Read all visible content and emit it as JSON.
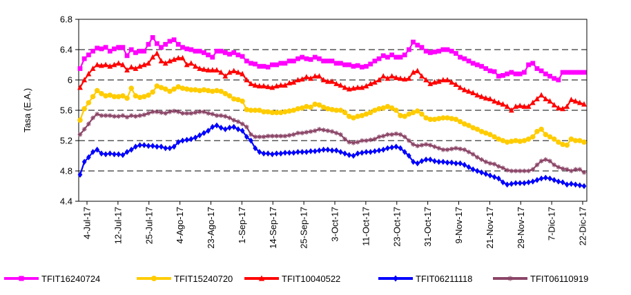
{
  "chart_data": {
    "type": "line",
    "title": "",
    "xlabel": "",
    "ylabel": "Tasa (E.A.)",
    "ylim": [
      4.4,
      6.8
    ],
    "yticks": [
      "4.4",
      "4.8",
      "5.2",
      "5.6",
      "6",
      "6.4",
      "6.8"
    ],
    "grid": "horizontal dashed",
    "legend_position": "bottom",
    "x_tick_labels": [
      "4-Jul-17",
      "12-Jul-17",
      "25-Jul-17",
      "4-Ago-17",
      "23-Ago-17",
      "1-Sep-17",
      "14-Sep-17",
      "25-Sep-17",
      "3-Oct-17",
      "11-Oct-17",
      "23-Oct-17",
      "31-Oct-17",
      "9-Nov-17",
      "21-Nov-17",
      "29-Nov-17",
      "7-Dic-17",
      "22-Dic-17"
    ],
    "n_points": 119,
    "series": [
      {
        "name": "TFIT16240724",
        "color": "#ff00ff",
        "marker": "square",
        "values": [
          6.15,
          6.28,
          6.33,
          6.38,
          6.42,
          6.41,
          6.43,
          6.38,
          6.41,
          6.43,
          6.43,
          6.32,
          6.4,
          6.36,
          6.38,
          6.38,
          6.47,
          6.56,
          6.48,
          6.43,
          6.47,
          6.51,
          6.53,
          6.47,
          6.43,
          6.41,
          6.4,
          6.38,
          6.38,
          6.36,
          6.33,
          6.3,
          6.38,
          6.38,
          6.36,
          6.34,
          6.36,
          6.33,
          6.31,
          6.25,
          6.22,
          6.21,
          6.18,
          6.18,
          6.17,
          6.2,
          6.2,
          6.22,
          6.22,
          6.25,
          6.25,
          6.28,
          6.3,
          6.28,
          6.27,
          6.3,
          6.28,
          6.25,
          6.25,
          6.25,
          6.22,
          6.22,
          6.2,
          6.2,
          6.18,
          6.19,
          6.17,
          6.18,
          6.21,
          6.25,
          6.28,
          6.32,
          6.3,
          6.33,
          6.3,
          6.3,
          6.33,
          6.4,
          6.5,
          6.46,
          6.43,
          6.38,
          6.36,
          6.37,
          6.38,
          6.4,
          6.4,
          6.38,
          6.35,
          6.3,
          6.28,
          6.25,
          6.22,
          6.2,
          6.18,
          6.15,
          6.12,
          6.11,
          6.05,
          6.06,
          6.08,
          6.1,
          6.08,
          6.08,
          6.1,
          6.2,
          6.22,
          6.15,
          6.12,
          6.08,
          6.05,
          6.02,
          6.0,
          6.1,
          6.1,
          6.1,
          6.1,
          6.1,
          6.1
        ]
      },
      {
        "name": "TFIT15240720",
        "color": "#ffcc00",
        "marker": "circle",
        "values": [
          5.47,
          5.62,
          5.7,
          5.78,
          5.86,
          5.82,
          5.79,
          5.8,
          5.78,
          5.78,
          5.79,
          5.76,
          5.89,
          5.79,
          5.77,
          5.78,
          5.8,
          5.84,
          5.92,
          5.9,
          5.88,
          5.85,
          5.88,
          5.91,
          5.89,
          5.88,
          5.87,
          5.87,
          5.86,
          5.87,
          5.86,
          5.85,
          5.86,
          5.85,
          5.82,
          5.79,
          5.75,
          5.74,
          5.72,
          5.61,
          5.6,
          5.6,
          5.6,
          5.58,
          5.58,
          5.57,
          5.57,
          5.57,
          5.58,
          5.59,
          5.6,
          5.62,
          5.63,
          5.65,
          5.64,
          5.68,
          5.67,
          5.64,
          5.62,
          5.61,
          5.6,
          5.6,
          5.57,
          5.52,
          5.5,
          5.52,
          5.53,
          5.55,
          5.57,
          5.6,
          5.62,
          5.63,
          5.65,
          5.63,
          5.6,
          5.53,
          5.52,
          5.55,
          5.57,
          5.59,
          5.55,
          5.5,
          5.48,
          5.48,
          5.49,
          5.5,
          5.5,
          5.49,
          5.48,
          5.45,
          5.42,
          5.4,
          5.37,
          5.35,
          5.32,
          5.3,
          5.28,
          5.25,
          5.22,
          5.2,
          5.18,
          5.19,
          5.2,
          5.19,
          5.2,
          5.22,
          5.25,
          5.32,
          5.35,
          5.28,
          5.25,
          5.22,
          5.18,
          5.15,
          5.14,
          5.22,
          5.2,
          5.2,
          5.18
        ]
      },
      {
        "name": "TFIT10040522",
        "color": "#ff0000",
        "marker": "triangle",
        "values": [
          5.9,
          6.0,
          6.08,
          6.15,
          6.2,
          6.19,
          6.2,
          6.18,
          6.2,
          6.22,
          6.2,
          6.13,
          6.17,
          6.15,
          6.18,
          6.2,
          6.22,
          6.3,
          6.35,
          6.25,
          6.22,
          6.25,
          6.27,
          6.29,
          6.29,
          6.2,
          6.22,
          6.18,
          6.15,
          6.14,
          6.13,
          6.13,
          6.13,
          6.1,
          6.05,
          6.1,
          6.12,
          6.1,
          6.08,
          6.0,
          5.95,
          5.93,
          5.92,
          5.92,
          5.91,
          5.9,
          5.92,
          5.93,
          5.93,
          5.96,
          5.97,
          6.0,
          6.01,
          6.04,
          6.02,
          6.05,
          6.05,
          6.0,
          5.98,
          5.98,
          5.95,
          5.93,
          5.9,
          5.88,
          5.89,
          5.9,
          5.9,
          5.92,
          5.95,
          5.97,
          6.0,
          6.05,
          6.02,
          6.05,
          6.03,
          6.02,
          6.01,
          6.02,
          6.1,
          6.12,
          6.05,
          6.0,
          5.95,
          5.97,
          5.98,
          6.0,
          6.0,
          5.97,
          5.94,
          5.9,
          5.87,
          5.85,
          5.83,
          5.8,
          5.78,
          5.76,
          5.75,
          5.72,
          5.7,
          5.68,
          5.65,
          5.6,
          5.65,
          5.66,
          5.65,
          5.65,
          5.7,
          5.75,
          5.8,
          5.75,
          5.72,
          5.67,
          5.63,
          5.62,
          5.65,
          5.74,
          5.72,
          5.7,
          5.68
        ]
      },
      {
        "name": "TFIT06211118",
        "color": "#0000ff",
        "marker": "diamond",
        "values": [
          4.75,
          4.92,
          4.98,
          5.05,
          5.08,
          5.03,
          5.02,
          5.03,
          5.02,
          5.02,
          5.01,
          5.05,
          5.08,
          5.12,
          5.14,
          5.14,
          5.13,
          5.13,
          5.12,
          5.12,
          5.1,
          5.1,
          5.12,
          5.18,
          5.2,
          5.21,
          5.22,
          5.24,
          5.27,
          5.3,
          5.33,
          5.38,
          5.4,
          5.37,
          5.35,
          5.37,
          5.38,
          5.35,
          5.33,
          5.25,
          5.2,
          5.1,
          5.05,
          5.03,
          5.03,
          5.02,
          5.03,
          5.03,
          5.04,
          5.04,
          5.04,
          5.05,
          5.05,
          5.05,
          5.06,
          5.06,
          5.07,
          5.08,
          5.08,
          5.07,
          5.07,
          5.05,
          5.03,
          5.01,
          5.0,
          5.03,
          5.04,
          5.05,
          5.05,
          5.06,
          5.07,
          5.08,
          5.1,
          5.11,
          5.12,
          5.1,
          5.05,
          5.0,
          4.92,
          4.9,
          4.93,
          4.95,
          4.95,
          4.93,
          4.92,
          4.92,
          4.91,
          4.91,
          4.9,
          4.9,
          4.88,
          4.85,
          4.82,
          4.8,
          4.78,
          4.76,
          4.74,
          4.72,
          4.7,
          4.65,
          4.62,
          4.63,
          4.64,
          4.64,
          4.64,
          4.65,
          4.66,
          4.68,
          4.7,
          4.71,
          4.7,
          4.68,
          4.66,
          4.65,
          4.62,
          4.63,
          4.62,
          4.61,
          4.6
        ]
      },
      {
        "name": "TFIT06110919",
        "color": "#8b4567",
        "marker": "star",
        "values": [
          5.28,
          5.35,
          5.42,
          5.5,
          5.55,
          5.53,
          5.53,
          5.53,
          5.52,
          5.52,
          5.53,
          5.51,
          5.53,
          5.52,
          5.53,
          5.54,
          5.56,
          5.58,
          5.58,
          5.57,
          5.56,
          5.58,
          5.59,
          5.58,
          5.56,
          5.56,
          5.56,
          5.57,
          5.58,
          5.58,
          5.56,
          5.55,
          5.53,
          5.53,
          5.52,
          5.5,
          5.47,
          5.45,
          5.42,
          5.38,
          5.28,
          5.25,
          5.25,
          5.25,
          5.26,
          5.26,
          5.26,
          5.26,
          5.26,
          5.27,
          5.28,
          5.3,
          5.3,
          5.31,
          5.32,
          5.33,
          5.35,
          5.34,
          5.33,
          5.32,
          5.3,
          5.28,
          5.22,
          5.18,
          5.17,
          5.18,
          5.2,
          5.2,
          5.21,
          5.22,
          5.25,
          5.26,
          5.28,
          5.28,
          5.29,
          5.28,
          5.25,
          5.2,
          5.15,
          5.13,
          5.14,
          5.15,
          5.14,
          5.12,
          5.1,
          5.08,
          5.08,
          5.09,
          5.1,
          5.09,
          5.08,
          5.05,
          5.02,
          4.98,
          4.95,
          4.92,
          4.9,
          4.89,
          4.86,
          4.84,
          4.81,
          4.8,
          4.8,
          4.8,
          4.8,
          4.8,
          4.82,
          4.88,
          4.93,
          4.95,
          4.93,
          4.88,
          4.85,
          4.83,
          4.82,
          4.8,
          4.82,
          4.82,
          4.78
        ]
      }
    ]
  }
}
